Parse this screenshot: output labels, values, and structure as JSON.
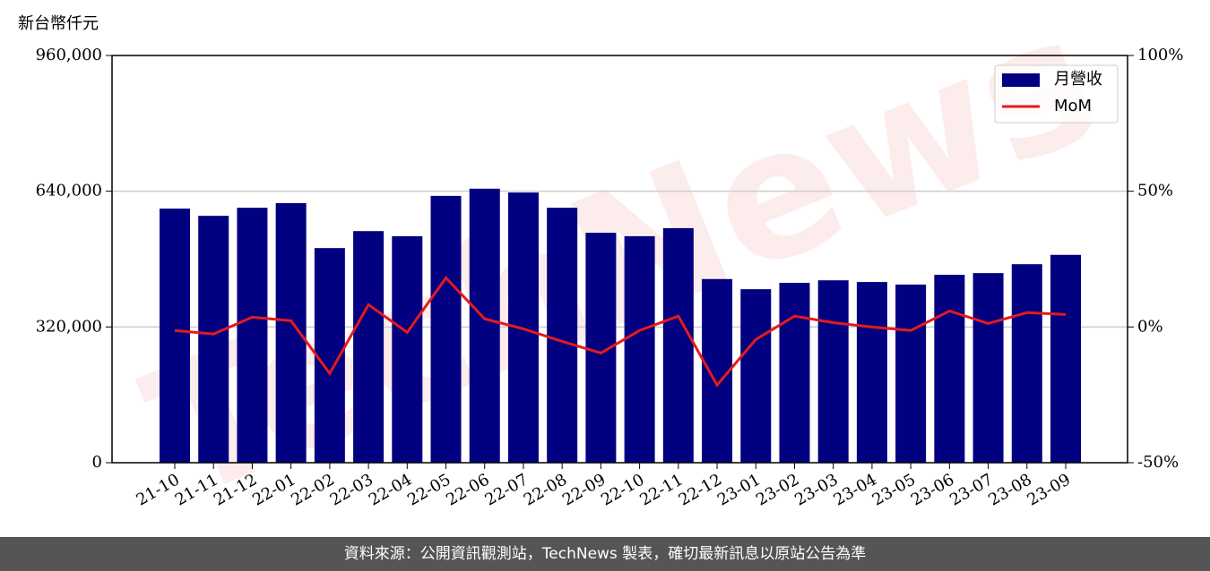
{
  "chart_data": {
    "type": "bar-line",
    "y_label": "新台幣仟元",
    "watermark": "TechNews",
    "footer": "資料來源：公開資訊觀測站，TechNews 製表，確切最新訊息以原站公告為準",
    "categories": [
      "21-10",
      "21-11",
      "21-12",
      "22-01",
      "22-02",
      "22-03",
      "22-04",
      "22-05",
      "22-06",
      "22-07",
      "22-08",
      "22-09",
      "22-10",
      "22-11",
      "22-12",
      "23-01",
      "23-02",
      "23-03",
      "23-04",
      "23-05",
      "23-06",
      "23-07",
      "23-08",
      "23-09"
    ],
    "series": [
      {
        "name": "月營收",
        "type": "bar",
        "color": "#000080",
        "values": [
          599000,
          582000,
          601000,
          612000,
          506000,
          546000,
          534000,
          629000,
          646000,
          637000,
          601000,
          542000,
          534000,
          553000,
          433000,
          409000,
          424000,
          430000,
          426000,
          420000,
          443000,
          447000,
          468000,
          490000
        ]
      },
      {
        "name": "MoM",
        "type": "line",
        "axis": "y2",
        "color": "#e41a1c",
        "values": [
          -1.3,
          -2.6,
          3.6,
          2.3,
          -17.1,
          8.2,
          -2.0,
          18.1,
          3.0,
          -0.7,
          -5.3,
          -9.6,
          -1.3,
          4.0,
          -21.4,
          -4.6,
          4.0,
          1.6,
          0,
          -1.3,
          5.9,
          1.3,
          5.3,
          4.6
        ]
      }
    ],
    "ylim": [
      0,
      960000
    ],
    "yticks": [
      0,
      {
        "value": 320000,
        "label": "320,000"
      },
      {
        "value": 640000,
        "label": "640,000"
      },
      {
        "value": 960000,
        "label": "960,000"
      }
    ],
    "y2lim": [
      -50,
      100
    ],
    "y2ticks": [
      {
        "value": -50,
        "label": "-50%"
      },
      {
        "value": 0,
        "label": "0%"
      },
      {
        "value": 50,
        "label": "50%"
      },
      {
        "value": 100,
        "label": "100%"
      }
    ],
    "grid": true,
    "legend": "upper right"
  }
}
